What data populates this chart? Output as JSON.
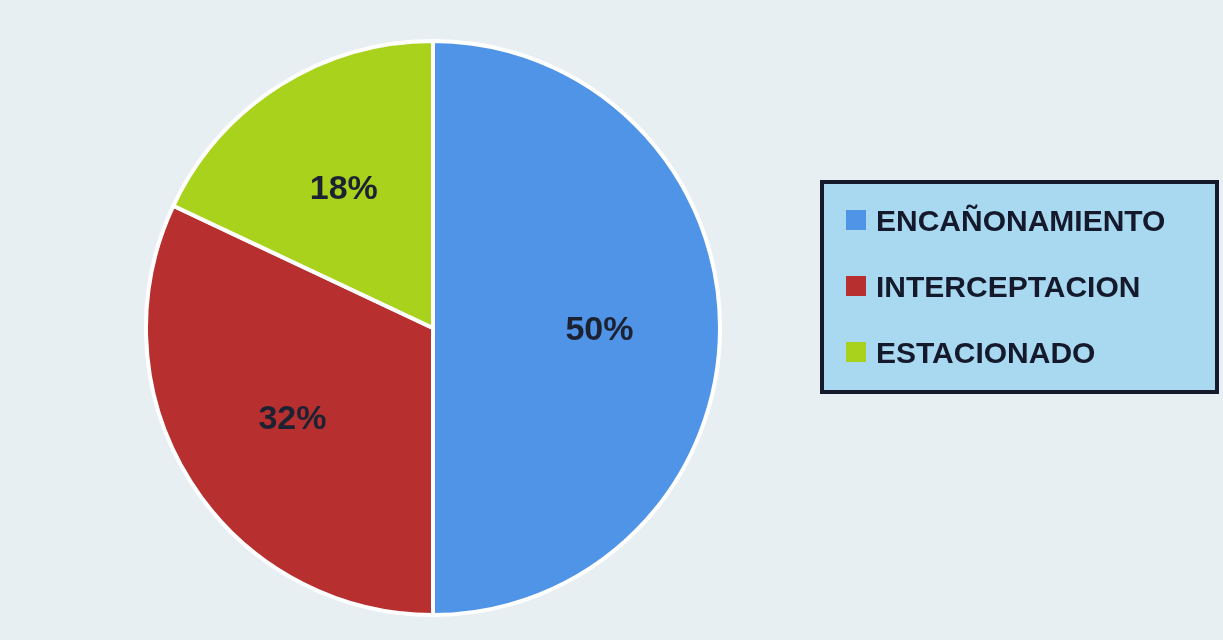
{
  "chart_data": {
    "type": "pie",
    "categories": [
      "ENCAÑONAMIENTO",
      "INTERCEPTACION",
      "ESTACIONADO"
    ],
    "values": [
      50,
      32,
      18
    ],
    "colors": [
      "#4f94e6",
      "#b7302f",
      "#a8d21c"
    ],
    "value_labels": [
      "50%",
      "32%",
      "18%"
    ],
    "legend": "right"
  }
}
